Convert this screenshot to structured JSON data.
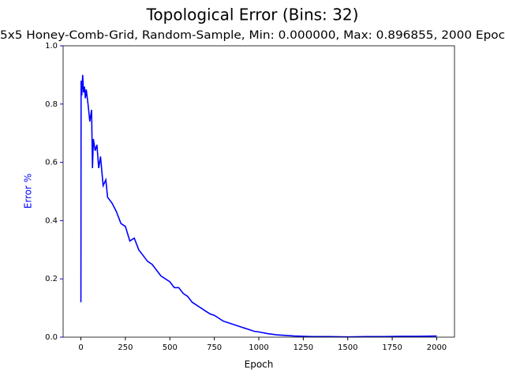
{
  "chart_data": {
    "type": "line",
    "title": "Topological Error (Bins: 32)",
    "subtitle": "5x5 Honey-Comb-Grid, Random-Sample, Min: 0.000000, Max: 0.896855, 2000 Epoc",
    "x_label": "Epoch",
    "y_label": "Error %",
    "xlim": [
      -100,
      2100
    ],
    "ylim": [
      0,
      1
    ],
    "xticks": [
      0,
      250,
      500,
      750,
      1000,
      1250,
      1500,
      1750,
      2000
    ],
    "yticks": [
      {
        "value": 0,
        "label": "0.0"
      },
      0.2,
      0.4,
      0.6,
      0.8,
      {
        "value": 1,
        "label": "1.0"
      }
    ],
    "axis_color": "#0000ff",
    "series": [
      {
        "name": "Error",
        "color": "#0000ff",
        "x": [
          0,
          1,
          5,
          10,
          15,
          20,
          25,
          30,
          40,
          50,
          60,
          65,
          70,
          80,
          90,
          100,
          110,
          125,
          140,
          150,
          175,
          200,
          225,
          250,
          275,
          300,
          325,
          350,
          375,
          400,
          425,
          450,
          475,
          500,
          525,
          550,
          575,
          600,
          625,
          650,
          675,
          700,
          725,
          750,
          775,
          800,
          825,
          850,
          875,
          900,
          925,
          950,
          975,
          1000,
          1050,
          1100,
          1150,
          1200,
          1250,
          1300,
          1400,
          1500,
          1600,
          1700,
          1800,
          1900,
          2000
        ],
        "values": [
          0.12,
          0.88,
          0.83,
          0.9,
          0.84,
          0.86,
          0.82,
          0.85,
          0.8,
          0.74,
          0.78,
          0.58,
          0.68,
          0.64,
          0.66,
          0.58,
          0.62,
          0.52,
          0.54,
          0.48,
          0.46,
          0.43,
          0.39,
          0.38,
          0.33,
          0.34,
          0.3,
          0.28,
          0.26,
          0.25,
          0.23,
          0.21,
          0.2,
          0.19,
          0.17,
          0.17,
          0.15,
          0.14,
          0.12,
          0.11,
          0.1,
          0.09,
          0.08,
          0.075,
          0.065,
          0.055,
          0.05,
          0.045,
          0.04,
          0.035,
          0.03,
          0.025,
          0.02,
          0.018,
          0.012,
          0.008,
          0.006,
          0.004,
          0.003,
          0.002,
          0.002,
          0.001,
          0.002,
          0.002,
          0.003,
          0.003,
          0.004
        ]
      }
    ]
  }
}
